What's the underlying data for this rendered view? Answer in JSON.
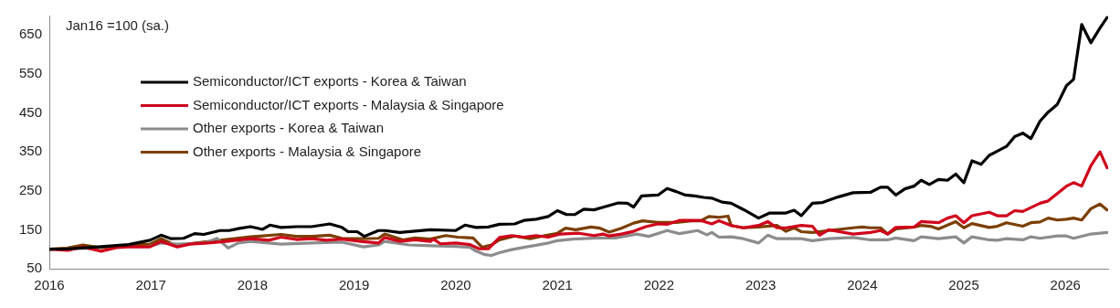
{
  "chart_data": {
    "type": "line",
    "ylabel": "Jan16 =100 (sa.)",
    "xlim": [
      2016,
      2026.42
    ],
    "xticks": [
      2016,
      2017,
      2018,
      2019,
      2020,
      2021,
      2022,
      2023,
      2024,
      2025,
      2026
    ],
    "ylim": [
      50,
      700
    ],
    "yticks": [
      50,
      150,
      250,
      350,
      450,
      550,
      650
    ],
    "grid": false,
    "legend": "top left",
    "marker": "none",
    "line_style": "solid",
    "series": [
      {
        "name": "Semiconductor/ICT exports - Korea & Taiwan",
        "color": "#000000",
        "x": [
          2016,
          2016.18,
          2016.48,
          2016.78,
          2016.99,
          2017.1,
          2017.2,
          2017.32,
          2017.43,
          2017.52,
          2017.68,
          2017.77,
          2017.86,
          2017.98,
          2018.1,
          2018.17,
          2018.28,
          2018.43,
          2018.58,
          2018.76,
          2018.88,
          2018.94,
          2019.03,
          2019.1,
          2019.24,
          2019.3,
          2019.45,
          2019.75,
          2020,
          2020.09,
          2020.2,
          2020.32,
          2020.43,
          2020.58,
          2020.67,
          2020.79,
          2020.91,
          2021,
          2021.09,
          2021.17,
          2021.26,
          2021.36,
          2021.45,
          2021.6,
          2021.69,
          2021.75,
          2021.83,
          2021.99,
          2022.08,
          2022.17,
          2022.26,
          2022.35,
          2022.44,
          2022.52,
          2022.62,
          2022.71,
          2022.83,
          2022.98,
          2023.09,
          2023.25,
          2023.33,
          2023.4,
          2023.51,
          2023.61,
          2023.76,
          2023.91,
          2024.08,
          2024.18,
          2024.25,
          2024.33,
          2024.42,
          2024.51,
          2024.58,
          2024.66,
          2024.75,
          2024.84,
          2024.92,
          2025,
          2025.08,
          2025.17,
          2025.25,
          2025.33,
          2025.42,
          2025.5,
          2025.58,
          2025.66,
          2025.75,
          2025.83,
          2025.92,
          2026.01,
          2026.08,
          2026.16,
          2026.25,
          2026.34,
          2026.41
        ],
        "values": [
          100,
          101,
          106,
          112,
          123,
          136,
          127,
          128,
          140,
          138,
          148,
          148,
          153,
          158,
          151,
          162,
          156,
          158,
          158,
          165,
          156,
          145,
          145,
          133,
          148,
          148,
          143,
          150,
          148,
          162,
          156,
          157,
          164,
          165,
          174,
          177,
          184,
          199,
          189,
          189,
          203,
          201,
          208,
          219,
          218,
          208,
          237,
          239,
          256,
          248,
          239,
          237,
          233,
          231,
          221,
          218,
          202,
          180,
          193,
          193,
          200,
          186,
          218,
          220,
          234,
          245,
          246,
          259,
          259,
          239,
          255,
          262,
          277,
          266,
          279,
          277,
          293,
          271,
          327,
          318,
          341,
          352,
          364,
          389,
          398,
          384,
          429,
          452,
          472,
          520,
          536,
          677,
          630,
          668,
          695
        ]
      },
      {
        "name": "Semiconductor/ICT exports - Malaysia & Singapore",
        "color": "#d0021b",
        "x": [
          2016,
          2016.18,
          2016.33,
          2016.51,
          2016.66,
          2016.78,
          2016.99,
          2017.1,
          2017.26,
          2017.38,
          2017.56,
          2017.74,
          2017.98,
          2018.16,
          2018.28,
          2018.43,
          2018.58,
          2018.73,
          2018.88,
          2019.06,
          2019.24,
          2019.3,
          2019.45,
          2019.6,
          2019.75,
          2019.78,
          2019.85,
          2020,
          2020.14,
          2020.23,
          2020.32,
          2020.43,
          2020.55,
          2020.67,
          2020.79,
          2020.91,
          2021.03,
          2021.21,
          2021.36,
          2021.45,
          2021.51,
          2021.63,
          2021.75,
          2021.87,
          2021.99,
          2022.08,
          2022.2,
          2022.32,
          2022.41,
          2022.52,
          2022.59,
          2022.71,
          2022.83,
          2022.98,
          2023.07,
          2023.16,
          2023.25,
          2023.4,
          2023.51,
          2023.58,
          2023.67,
          2023.91,
          2024.08,
          2024.18,
          2024.25,
          2024.33,
          2024.51,
          2024.58,
          2024.75,
          2024.84,
          2024.92,
          2025,
          2025.08,
          2025.25,
          2025.33,
          2025.42,
          2025.5,
          2025.58,
          2025.75,
          2025.83,
          2025.92,
          2026.01,
          2026.08,
          2026.16,
          2026.25,
          2026.34,
          2026.41
        ],
        "values": [
          100,
          97,
          106,
          95,
          104,
          106,
          106,
          120,
          106,
          113,
          116,
          120,
          127,
          123,
          131,
          125,
          127,
          123,
          126,
          120,
          116,
          130,
          120,
          124,
          120,
          126,
          114,
          116,
          112,
          101,
          101,
          130,
          135,
          131,
          135,
          131,
          139,
          141,
          135,
          139,
          134,
          139,
          146,
          158,
          165,
          164,
          174,
          174,
          174,
          165,
          173,
          161,
          155,
          161,
          171,
          155,
          155,
          161,
          159,
          136,
          150,
          139,
          143,
          148,
          139,
          156,
          157,
          171,
          168,
          180,
          186,
          168,
          186,
          195,
          186,
          186,
          199,
          197,
          218,
          224,
          243,
          262,
          271,
          262,
          314,
          350,
          309
        ]
      },
      {
        "name": "Other exports - Korea & Taiwan",
        "color": "#8c8c8c",
        "x": [
          2016,
          2016.18,
          2016.48,
          2016.78,
          2016.99,
          2017.1,
          2017.26,
          2017.53,
          2017.65,
          2017.76,
          2017.86,
          2017.98,
          2018.28,
          2018.58,
          2018.88,
          2019.09,
          2019.24,
          2019.3,
          2019.54,
          2019.75,
          2020,
          2020.14,
          2020.2,
          2020.29,
          2020.35,
          2020.43,
          2020.55,
          2020.67,
          2020.79,
          2020.91,
          2021,
          2021.15,
          2021.39,
          2021.57,
          2021.78,
          2021.9,
          2022.08,
          2022.2,
          2022.38,
          2022.47,
          2022.52,
          2022.59,
          2022.71,
          2022.83,
          2022.98,
          2023.07,
          2023.16,
          2023.4,
          2023.51,
          2023.67,
          2023.91,
          2024.08,
          2024.25,
          2024.33,
          2024.51,
          2024.58,
          2024.75,
          2024.92,
          2025,
          2025.08,
          2025.25,
          2025.33,
          2025.42,
          2025.58,
          2025.66,
          2025.75,
          2025.92,
          2026.01,
          2026.08,
          2026.25,
          2026.41
        ],
        "values": [
          100,
          101,
          103,
          null,
          108,
          116,
          113,
          116,
          128,
          103,
          116,
          120,
          113,
          116,
          118,
          106,
          111,
          120,
          111,
          109,
          107,
          105,
          95,
          86,
          84,
          91,
          99,
          105,
          110,
          116,
          122,
          126,
          129,
          129,
          139,
          133,
          148,
          140,
          148,
          137,
          143,
          131,
          132,
          127,
          116,
          136,
          127,
          127,
          122,
          127,
          130,
          124,
          124,
          129,
          122,
          132,
          127,
          132,
          116,
          132,
          124,
          123,
          127,
          124,
          132,
          128,
          134,
          134,
          128,
          139,
          143
        ]
      },
      {
        "name": "Other exports - Malaysia & Singapore",
        "color": "#7b3f00",
        "x": [
          2016,
          2016.18,
          2016.33,
          2016.51,
          2016.78,
          2016.99,
          2017.1,
          2017.26,
          2017.44,
          2017.68,
          2017.98,
          2018.1,
          2018.28,
          2018.43,
          2018.58,
          2018.76,
          2018.88,
          2019.06,
          2019.24,
          2019.3,
          2019.48,
          2019.6,
          2019.75,
          2019.9,
          2020.02,
          2020.17,
          2020.26,
          2020.35,
          2020.43,
          2020.58,
          2020.73,
          2020.88,
          2021,
          2021.08,
          2021.18,
          2021.33,
          2021.42,
          2021.51,
          2021.63,
          2021.75,
          2021.84,
          2021.99,
          2022.17,
          2022.32,
          2022.41,
          2022.49,
          2022.59,
          2022.68,
          2022.71,
          2022.83,
          2022.98,
          2023.16,
          2023.25,
          2023.33,
          2023.4,
          2023.51,
          2023.67,
          2023.91,
          2024,
          2024.08,
          2024.18,
          2024.25,
          2024.33,
          2024.51,
          2024.58,
          2024.67,
          2024.75,
          2024.92,
          2025,
          2025.08,
          2025.25,
          2025.33,
          2025.42,
          2025.58,
          2025.66,
          2025.75,
          2025.83,
          2025.92,
          2026.01,
          2026.08,
          2026.16,
          2026.25,
          2026.34,
          2026.41
        ],
        "values": [
          100,
          103,
          111,
          104,
          111,
          113,
          127,
          108,
          116,
          123,
          132,
          134,
          138,
          133,
          133,
          136,
          128,
          127,
          128,
          139,
          124,
          129,
          126,
          135,
          131,
          129,
          105,
          111,
          124,
          134,
          127,
          135,
          141,
          154,
          150,
          157,
          154,
          144,
          154,
          167,
          173,
          169,
          169,
          173,
          173,
          184,
          182,
          185,
          161,
          155,
          157,
          161,
          146,
          155,
          145,
          143,
          148,
          155,
          157,
          155,
          155,
          139,
          152,
          157,
          161,
          159,
          152,
          171,
          155,
          166,
          156,
          159,
          168,
          159,
          168,
          170,
          180,
          175,
          177,
          180,
          175,
          204,
          216,
          201
        ]
      }
    ]
  }
}
